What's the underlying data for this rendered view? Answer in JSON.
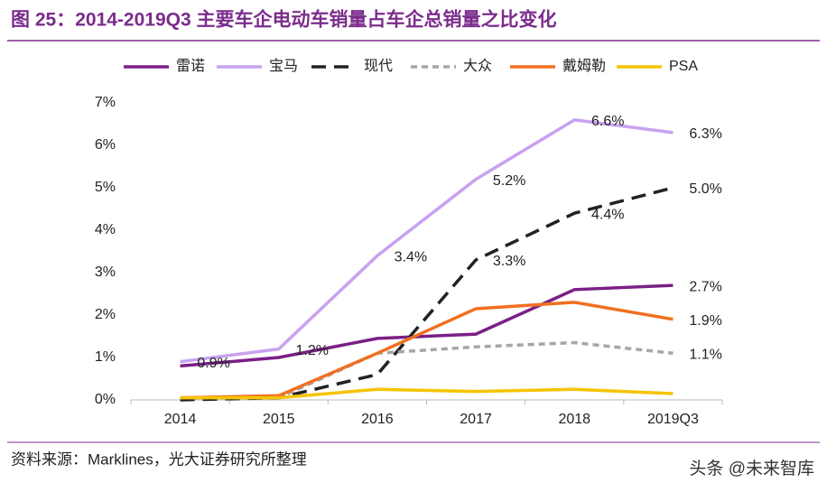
{
  "chart_data": {
    "type": "line",
    "title": "图 25：2014-2019Q3 主要车企电动车销量占车企总销量之比变化",
    "categories": [
      "2014",
      "2015",
      "2016",
      "2017",
      "2018",
      "2019Q3"
    ],
    "series": [
      {
        "name": "雷诺",
        "color": "#7b1f86",
        "dash": "solid",
        "values": [
          0.8,
          1.0,
          1.45,
          1.55,
          2.6,
          2.7
        ],
        "value_labels": [
          null,
          null,
          null,
          null,
          null,
          "2.7%"
        ]
      },
      {
        "name": "宝马",
        "color": "#c8a2f0",
        "dash": "solid",
        "values": [
          0.9,
          1.2,
          3.4,
          5.2,
          6.6,
          6.3
        ],
        "value_labels": [
          "0.9%",
          "1.2%",
          "3.4%",
          "5.2%",
          "6.6%",
          "6.3%"
        ]
      },
      {
        "name": "现代",
        "color": "#222222",
        "dash": "long",
        "values": [
          0.0,
          0.05,
          0.6,
          3.3,
          4.4,
          5.0
        ],
        "value_labels": [
          null,
          null,
          null,
          "3.3%",
          "4.4%",
          "5.0%"
        ]
      },
      {
        "name": "大众",
        "color": "#a6a6a6",
        "dash": "short",
        "values": [
          0.05,
          0.05,
          1.1,
          1.25,
          1.35,
          1.1
        ],
        "value_labels": [
          null,
          null,
          null,
          null,
          null,
          "1.1%"
        ]
      },
      {
        "name": "戴姆勒",
        "color": "#f07020",
        "dash": "solid",
        "values": [
          0.05,
          0.1,
          1.1,
          2.15,
          2.3,
          1.9
        ],
        "value_labels": [
          null,
          null,
          null,
          null,
          null,
          "1.9%"
        ]
      },
      {
        "name": "PSA",
        "color": "#f5c400",
        "dash": "solid",
        "values": [
          0.05,
          0.05,
          0.25,
          0.2,
          0.25,
          0.15
        ],
        "value_labels": [
          null,
          null,
          null,
          null,
          null,
          null
        ]
      }
    ],
    "ylim": [
      0,
      7
    ],
    "yticks": [
      {
        "value": 0,
        "label": "0%"
      },
      {
        "value": 1,
        "label": "1%"
      },
      {
        "value": 2,
        "label": "2%"
      },
      {
        "value": 3,
        "label": "3%"
      },
      {
        "value": 4,
        "label": "4%"
      },
      {
        "value": 5,
        "label": "5%"
      },
      {
        "value": 6,
        "label": "6%"
      },
      {
        "value": 7,
        "label": "7%"
      }
    ],
    "grid": false,
    "legend": "top",
    "source": "资料来源：Marklines，光大证券研究所整理",
    "watermark": "头条 @未来智库"
  }
}
